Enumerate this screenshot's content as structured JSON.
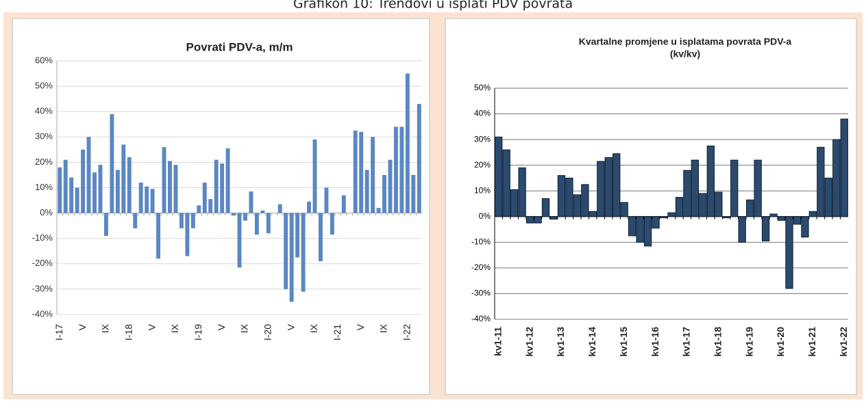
{
  "title": "Grafikon 10: Trendovi u isplati PDV povrata",
  "chart_data": [
    {
      "type": "bar",
      "title": "Povrati PDV-a, m/m",
      "color": "#5b87c2",
      "grid": true,
      "categories": [
        "I-17",
        null,
        null,
        null,
        "V",
        null,
        null,
        null,
        "IX",
        null,
        null,
        null,
        "I-18",
        null,
        null,
        null,
        "V",
        null,
        null,
        null,
        "IX",
        null,
        null,
        null,
        "I-19",
        null,
        null,
        null,
        "V",
        null,
        null,
        null,
        "IX",
        null,
        null,
        null,
        "I-20",
        null,
        null,
        null,
        "V",
        null,
        null,
        null,
        "IX",
        null,
        null,
        null,
        "I-21",
        null,
        null,
        null,
        "V",
        null,
        null,
        null,
        "IX",
        null,
        null,
        null,
        "I-22",
        null,
        null
      ],
      "values": [
        18,
        21,
        14,
        10,
        25,
        30,
        16,
        19,
        -9,
        39,
        17,
        27,
        22,
        -6,
        12,
        10.5,
        9.5,
        -18,
        26,
        20.5,
        19,
        -6,
        -17,
        -6,
        3,
        12,
        5.5,
        21,
        19.5,
        25.5,
        -1,
        -21.5,
        -3,
        8.5,
        -8.5,
        1,
        -8,
        0,
        3.5,
        -30,
        -35,
        -17.5,
        -31,
        4.5,
        29,
        -19,
        10,
        -8.5,
        0,
        7,
        0,
        32.5,
        32,
        17,
        30,
        2,
        15,
        21,
        34,
        34,
        55,
        15,
        43
      ],
      "ylim": [
        -40,
        60
      ],
      "yticks": [
        {
          "value": -40,
          "label": "-40%"
        },
        {
          "value": -30,
          "label": "-30%"
        },
        {
          "value": -20,
          "label": "-20%"
        },
        {
          "value": -10,
          "label": "-10%"
        },
        {
          "value": 0,
          "label": "0%"
        },
        {
          "value": 10,
          "label": "10%"
        },
        {
          "value": 20,
          "label": "20%"
        },
        {
          "value": 30,
          "label": "30%"
        },
        {
          "value": 40,
          "label": "40%"
        },
        {
          "value": 50,
          "label": "50%"
        },
        {
          "value": 60,
          "label": "60%"
        }
      ]
    },
    {
      "type": "bar",
      "title": "Kvartalne promjene u isplatama povrata PDV-a",
      "subtitle": "(kv/kv)",
      "color": "#2b4a6e",
      "grid": true,
      "categories": [
        "kv1-11",
        null,
        null,
        null,
        "kv1-12",
        null,
        null,
        null,
        "kv1-13",
        null,
        null,
        null,
        "kv1-14",
        null,
        null,
        null,
        "kv1-15",
        null,
        null,
        null,
        "kv1-16",
        null,
        null,
        null,
        "kv1-17",
        null,
        null,
        null,
        "kv1-18",
        null,
        null,
        null,
        "kv1-19",
        null,
        null,
        null,
        "kv1-20",
        null,
        null,
        null,
        "kv1-21",
        null,
        null,
        null,
        "kv1-22"
      ],
      "values": [
        31,
        26,
        10.5,
        19,
        -2.5,
        -2.5,
        7,
        -1,
        16,
        15,
        8.5,
        12.5,
        2,
        21.5,
        23,
        24.5,
        5.5,
        -7.5,
        -10,
        -11.5,
        -4.5,
        -0.5,
        1.5,
        7.5,
        18,
        22,
        9,
        27.5,
        9.5,
        -0.5,
        22,
        -10,
        6.5,
        22,
        -9.5,
        1,
        -1.5,
        -28,
        -3,
        -8,
        2,
        27,
        15,
        30,
        38
      ],
      "ylim": [
        -40,
        50
      ],
      "yticks": [
        {
          "value": -40,
          "label": "-40%"
        },
        {
          "value": -30,
          "label": "-30%"
        },
        {
          "value": -20,
          "label": "-20%"
        },
        {
          "value": -10,
          "label": "-10%"
        },
        {
          "value": 0,
          "label": "0%"
        },
        {
          "value": 10,
          "label": "10%"
        },
        {
          "value": 20,
          "label": "20%"
        },
        {
          "value": 30,
          "label": "30%"
        },
        {
          "value": 40,
          "label": "40%"
        },
        {
          "value": 50,
          "label": "50%"
        }
      ]
    }
  ]
}
